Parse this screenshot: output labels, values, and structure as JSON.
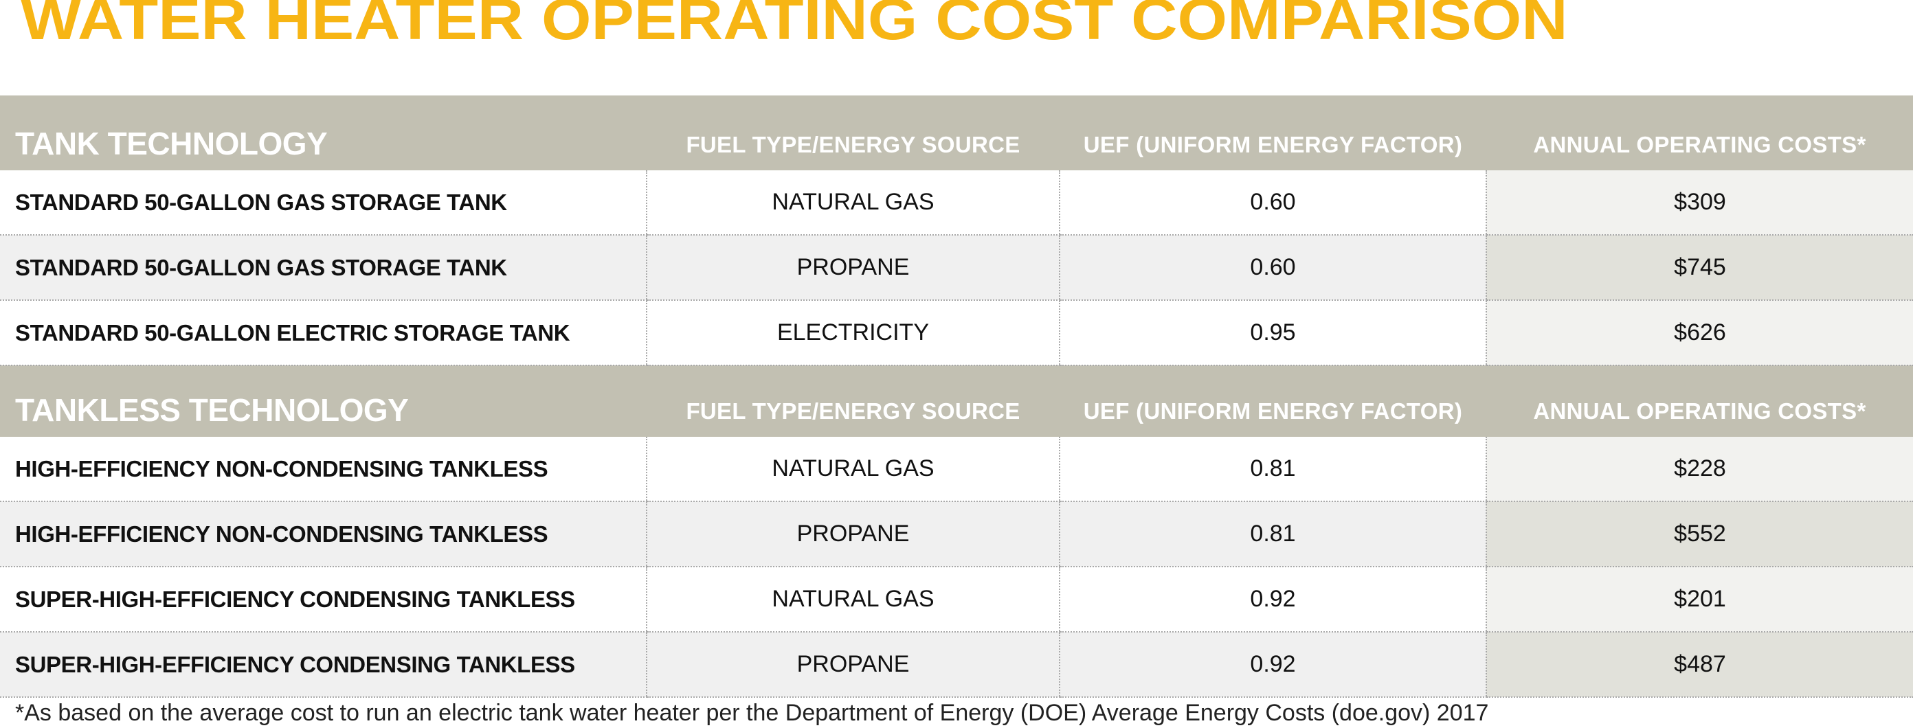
{
  "title": "WATER HEATER OPERATING COST COMPARISON",
  "chart_data": {
    "type": "table",
    "columns": [
      "FUEL TYPE/ENERGY SOURCE",
      "UEF (UNIFORM ENERGY FACTOR)",
      "ANNUAL OPERATING COSTS*"
    ],
    "groups": [
      {
        "name": "TANK TECHNOLOGY",
        "rows": [
          {
            "name": "STANDARD 50-GALLON GAS STORAGE TANK",
            "fuel": "NATURAL GAS",
            "uef": "0.60",
            "cost": "$309"
          },
          {
            "name": "STANDARD 50-GALLON GAS STORAGE TANK",
            "fuel": "PROPANE",
            "uef": "0.60",
            "cost": "$745"
          },
          {
            "name": "STANDARD 50-GALLON ELECTRIC STORAGE TANK",
            "fuel": "ELECTRICITY",
            "uef": "0.95",
            "cost": "$626"
          }
        ]
      },
      {
        "name": "TANKLESS TECHNOLOGY",
        "rows": [
          {
            "name": "HIGH-EFFICIENCY NON-CONDENSING TANKLESS",
            "fuel": "NATURAL GAS",
            "uef": "0.81",
            "cost": "$228"
          },
          {
            "name": "HIGH-EFFICIENCY NON-CONDENSING TANKLESS",
            "fuel": "PROPANE",
            "uef": "0.81",
            "cost": "$552"
          },
          {
            "name": "SUPER-HIGH-EFFICIENCY CONDENSING TANKLESS",
            "fuel": "NATURAL GAS",
            "uef": "0.92",
            "cost": "$201"
          },
          {
            "name": "SUPER-HIGH-EFFICIENCY CONDENSING TANKLESS",
            "fuel": "PROPANE",
            "uef": "0.92",
            "cost": "$487"
          }
        ]
      }
    ]
  },
  "footnote": "*As based on the average cost to run an electric tank water heater per the Department of Energy (DOE) Average Energy Costs (doe.gov) 2017",
  "colors": {
    "title": "#f7b514",
    "header_bg": "#c2c0b2",
    "header_text": "#ffffff",
    "row_alt_bg": "#f0f0f0",
    "cost_col_bg": "#e1e1da"
  }
}
